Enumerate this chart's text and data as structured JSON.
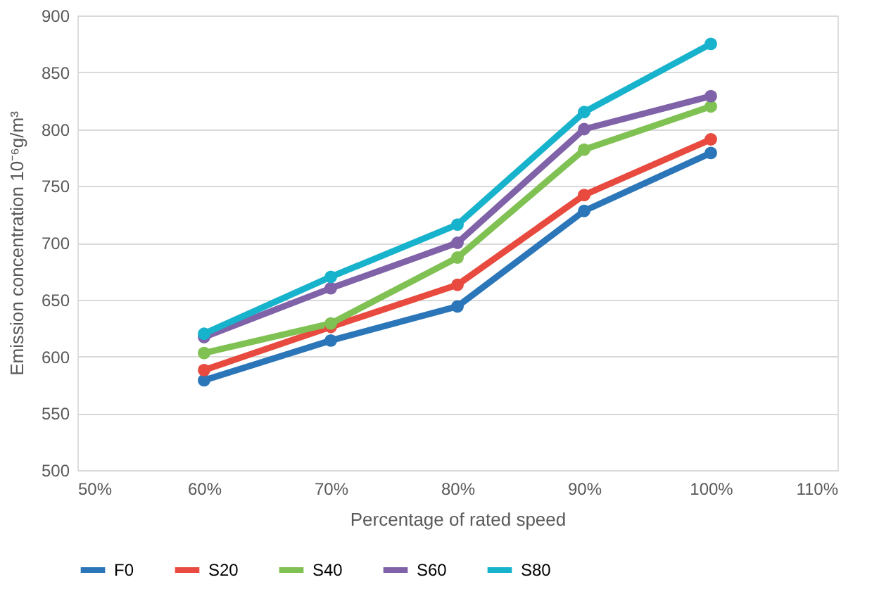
{
  "chart_data": {
    "type": "line",
    "xlabel": "Percentage of rated speed",
    "ylabel": "Emission concentration  10⁻⁶g/m³",
    "x": [
      60,
      70,
      80,
      90,
      100
    ],
    "series": [
      {
        "name": "F0",
        "color": "#2b76b8",
        "values": [
          579,
          614,
          644,
          728,
          779
        ]
      },
      {
        "name": "S20",
        "color": "#e84a3f",
        "values": [
          588,
          626,
          663,
          742,
          791
        ]
      },
      {
        "name": "S40",
        "color": "#80c153",
        "values": [
          603,
          629,
          687,
          782,
          820
        ]
      },
      {
        "name": "S60",
        "color": "#8062a8",
        "values": [
          617,
          660,
          700,
          800,
          829
        ]
      },
      {
        "name": "S80",
        "color": "#17b2cb",
        "values": [
          620,
          670,
          716,
          815,
          875
        ]
      }
    ],
    "xlim": [
      50,
      110
    ],
    "xticks": [
      {
        "value": 50,
        "label": "50%"
      },
      {
        "value": 60,
        "label": "60%"
      },
      {
        "value": 70,
        "label": "70%"
      },
      {
        "value": 80,
        "label": "80%"
      },
      {
        "value": 90,
        "label": "90%"
      },
      {
        "value": 100,
        "label": "100%"
      },
      {
        "value": 110,
        "label": "110%"
      }
    ],
    "ylim": [
      500,
      900
    ],
    "yticks": [
      500,
      550,
      600,
      650,
      700,
      750,
      800,
      850,
      900
    ],
    "grid": "y",
    "legend": "bottom",
    "marker": "circle",
    "line_style": "solid"
  }
}
